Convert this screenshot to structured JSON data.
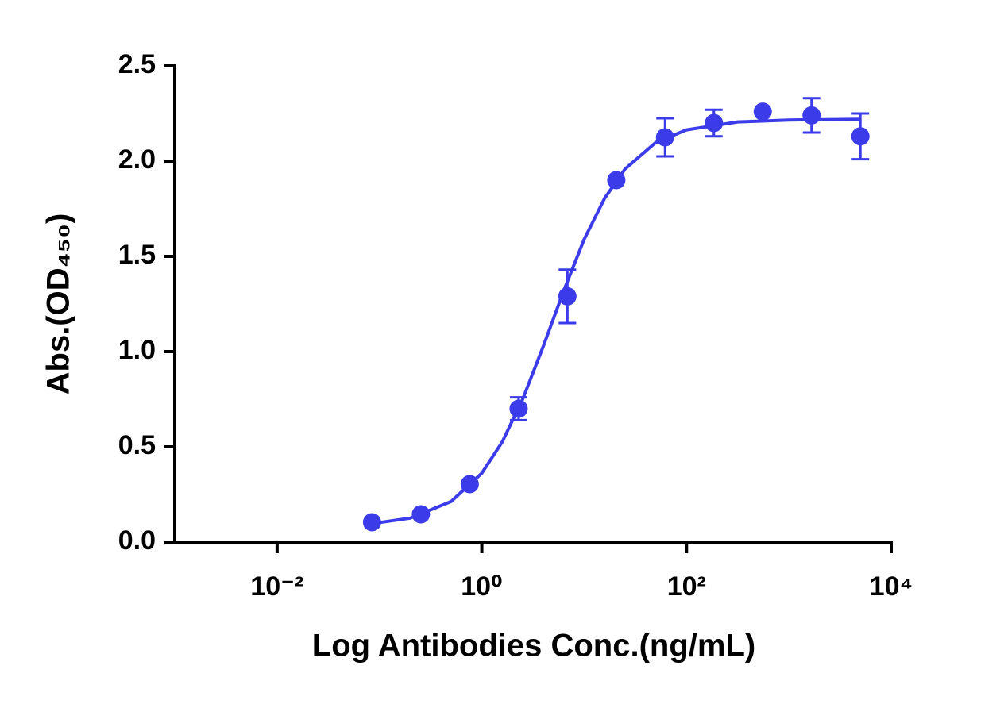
{
  "chart_data": {
    "type": "scatter",
    "x_label": "Log Antibodies Conc.(ng/mL)",
    "y_label": "Abs.(OD₄₅₀)",
    "log_x": true,
    "xlim": [
      0.001,
      10000
    ],
    "ylim": [
      0,
      2.5
    ],
    "xticks": [
      {
        "value": 0.01,
        "label": "10⁻²"
      },
      {
        "value": 1,
        "label": "10⁰"
      },
      {
        "value": 100,
        "label": "10²"
      },
      {
        "value": 10000,
        "label": "10⁴"
      }
    ],
    "yticks": [
      {
        "value": 0,
        "label": "0.0"
      },
      0.5,
      {
        "value": 1,
        "label": "1.0"
      },
      1.5,
      {
        "value": 2,
        "label": "2.0"
      },
      2.5
    ],
    "series": [
      {
        "color": "#3b3bea",
        "x": [
          0.0847,
          0.254,
          0.762,
          2.29,
          6.86,
          20.6,
          61.7,
          185.2,
          555.6,
          1666.7,
          5000
        ],
        "values": [
          0.104,
          0.146,
          0.304,
          0.7,
          1.29,
          1.9,
          2.125,
          2.2,
          2.26,
          2.24,
          2.13
        ],
        "errors": [
          null,
          null,
          null,
          0.06,
          0.14,
          null,
          0.1,
          0.07,
          null,
          0.09,
          0.12
        ]
      }
    ],
    "fit": {
      "color": "#3b3bea",
      "x": [
        0.0794,
        0.1995,
        0.501,
        1,
        1.585,
        2.512,
        3.981,
        6.31,
        10,
        15.85,
        25.12,
        50.12,
        100,
        316.2,
        1000,
        5012
      ],
      "values": [
        0.095,
        0.126,
        0.213,
        0.362,
        0.526,
        0.751,
        1.027,
        1.319,
        1.589,
        1.805,
        1.959,
        2.098,
        2.164,
        2.206,
        2.216,
        2.22
      ]
    }
  }
}
